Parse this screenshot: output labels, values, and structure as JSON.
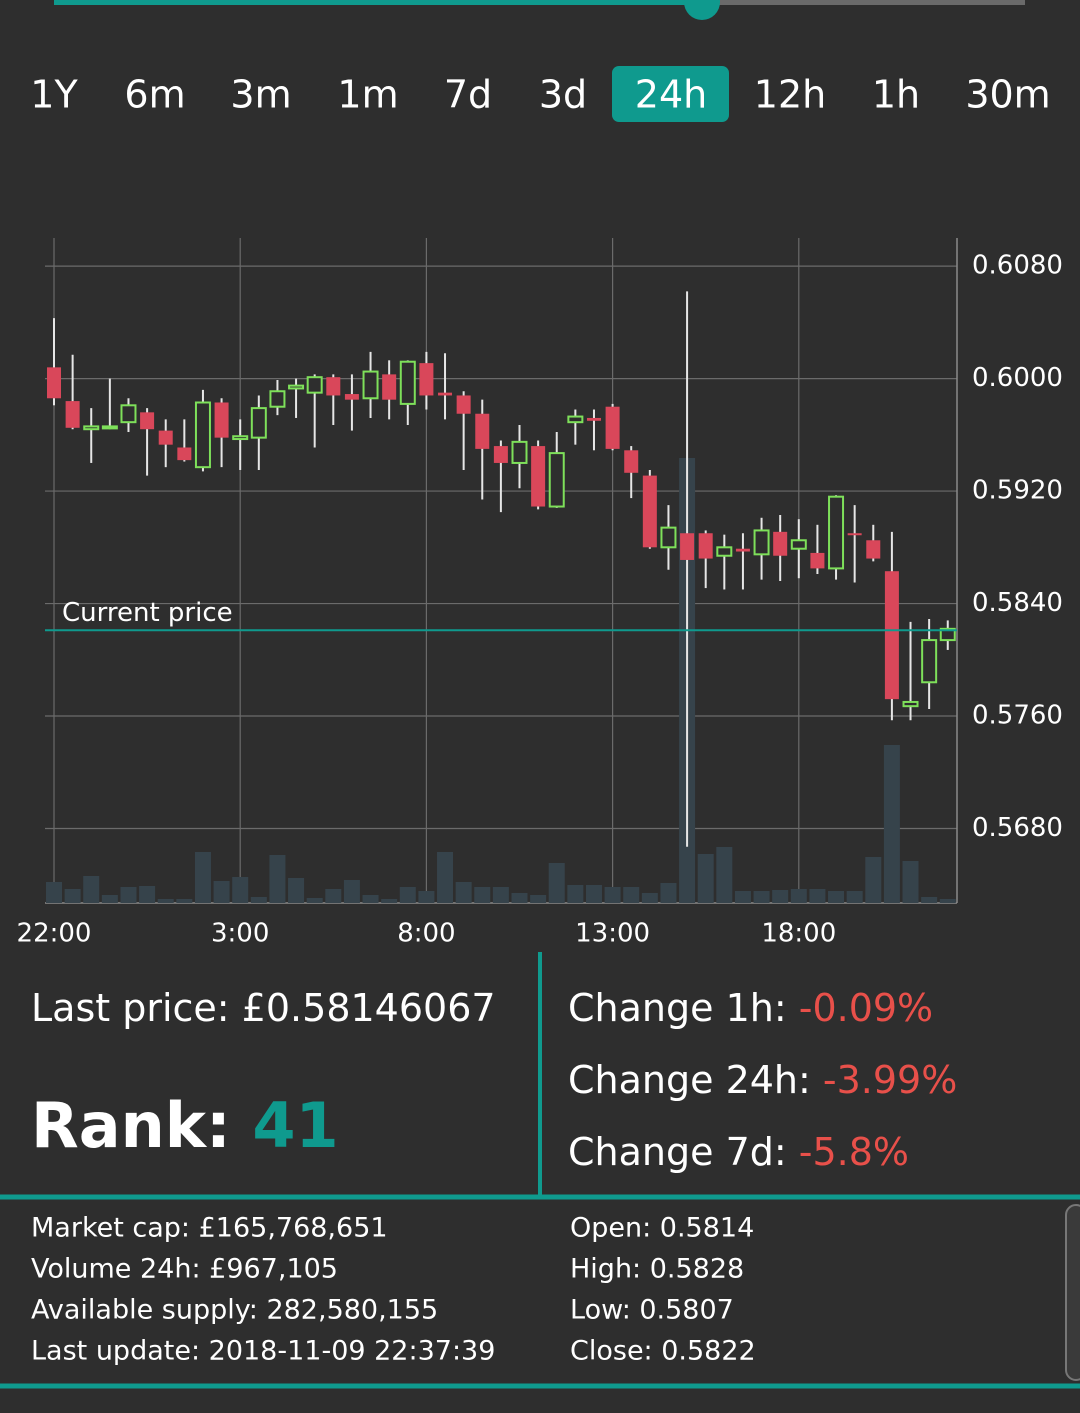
{
  "tabs": {
    "items": [
      "1Y",
      "6m",
      "3m",
      "1m",
      "7d",
      "3d",
      "24h",
      "12h",
      "1h",
      "30m"
    ],
    "selected_index": 6
  },
  "chart_data": {
    "type": "candlestick",
    "ylim": [
      0.5627,
      0.61
    ],
    "yticks": [
      {
        "value": 0.608,
        "label": "0.6080"
      },
      {
        "value": 0.6,
        "label": "0.6000"
      },
      {
        "value": 0.592,
        "label": "0.5920"
      },
      {
        "value": 0.584,
        "label": "0.5840"
      },
      {
        "value": 0.576,
        "label": "0.5760"
      },
      {
        "value": 0.568,
        "label": "0.5680"
      }
    ],
    "xticks": [
      {
        "value": 0,
        "label": "22:00"
      },
      {
        "value": 10,
        "label": "3:00"
      },
      {
        "value": 20,
        "label": "8:00"
      },
      {
        "value": 30,
        "label": "13:00"
      },
      {
        "value": 40,
        "label": "18:00"
      }
    ],
    "grid": true,
    "up_color": "#7ee05a",
    "down_color": "#d9475a",
    "volume_color": "#36434b",
    "line_color": "#0f9a8e",
    "current_price": {
      "label": "Current price",
      "value": 0.5821
    },
    "open": [
      0.6008,
      0.5984,
      0.5964,
      0.5965,
      0.5969,
      0.5976,
      0.5963,
      0.5951,
      0.5937,
      0.5983,
      0.5957,
      0.5958,
      0.598,
      0.5993,
      0.599,
      0.6001,
      0.5989,
      0.5986,
      0.6003,
      0.5982,
      0.6011,
      0.599,
      0.5988,
      0.5975,
      0.5952,
      0.594,
      0.5952,
      0.5909,
      0.5969,
      0.5972,
      0.598,
      0.5949,
      0.5931,
      0.588,
      0.589,
      0.589,
      0.5874,
      0.5879,
      0.5875,
      0.5891,
      0.5879,
      0.5876,
      0.5865,
      0.589,
      0.5885,
      0.5863,
      0.5767,
      0.5784,
      0.5814
    ],
    "close": [
      0.5986,
      0.5965,
      0.5966,
      0.5966,
      0.5981,
      0.5964,
      0.5953,
      0.5942,
      0.5983,
      0.5958,
      0.5959,
      0.5979,
      0.5991,
      0.5995,
      0.6001,
      0.5988,
      0.5985,
      0.6005,
      0.5985,
      0.6012,
      0.5988,
      0.5988,
      0.5975,
      0.595,
      0.594,
      0.5955,
      0.5909,
      0.5947,
      0.5973,
      0.597,
      0.595,
      0.5933,
      0.588,
      0.5894,
      0.5871,
      0.5872,
      0.588,
      0.5877,
      0.5892,
      0.5874,
      0.5885,
      0.5865,
      0.5916,
      0.5889,
      0.5872,
      0.5772,
      0.577,
      0.5814,
      0.5822
    ],
    "high": [
      0.6043,
      0.6017,
      0.5979,
      0.6,
      0.5986,
      0.5979,
      0.5971,
      0.5971,
      0.5992,
      0.5986,
      0.5971,
      0.5988,
      0.5999,
      0.6,
      0.6003,
      0.6003,
      0.6003,
      0.6019,
      0.6013,
      0.6013,
      0.6019,
      0.6018,
      0.5991,
      0.5985,
      0.5956,
      0.5967,
      0.5956,
      0.5962,
      0.5978,
      0.5978,
      0.5982,
      0.5952,
      0.5935,
      0.591,
      0.6062,
      0.5892,
      0.5889,
      0.589,
      0.5901,
      0.5903,
      0.59,
      0.5896,
      0.5917,
      0.591,
      0.5896,
      0.5891,
      0.5827,
      0.5829,
      0.5828
    ],
    "low": [
      0.5981,
      0.5964,
      0.594,
      0.5964,
      0.5962,
      0.5931,
      0.5937,
      0.5941,
      0.5934,
      0.5937,
      0.5935,
      0.5935,
      0.5974,
      0.5972,
      0.5951,
      0.5967,
      0.5963,
      0.5972,
      0.5971,
      0.5967,
      0.5978,
      0.5971,
      0.5935,
      0.5914,
      0.5905,
      0.5922,
      0.5907,
      0.5908,
      0.5953,
      0.5949,
      0.5949,
      0.5915,
      0.5879,
      0.5864,
      0.5667,
      0.5851,
      0.585,
      0.585,
      0.5857,
      0.5856,
      0.5858,
      0.5861,
      0.5857,
      0.5855,
      0.587,
      0.5757,
      0.5757,
      0.5765,
      0.5807
    ],
    "volume": [
      21,
      14,
      27,
      8,
      16,
      17,
      4,
      4,
      51,
      22,
      26,
      6,
      48,
      25,
      5,
      14,
      23,
      8,
      4,
      16,
      12,
      51,
      21,
      16,
      16,
      10,
      8,
      40,
      18,
      18,
      16,
      16,
      10,
      20,
      445,
      49,
      56,
      12,
      12,
      13,
      14,
      14,
      12,
      12,
      46,
      158,
      42,
      6,
      4
    ]
  },
  "summary": {
    "last_price": {
      "label": "Last price:",
      "value": "£0.58146067"
    },
    "rank": {
      "label": "Rank:",
      "value": 41
    },
    "changes": [
      {
        "label": "Change 1h:",
        "value": "-0.09%"
      },
      {
        "label": "Change 24h:",
        "value": "-3.99%"
      },
      {
        "label": "Change 7d:",
        "value": "-5.8%"
      }
    ]
  },
  "details": {
    "left": [
      "Market cap: £165,768,651",
      "Volume 24h: £967,105",
      "Available supply: 282,580,155",
      "Last update:  2018-11-09 22:37:39"
    ],
    "right": [
      "Open: 0.5814",
      "High: 0.5828",
      "Low: 0.5807",
      "Close: 0.5822"
    ]
  }
}
